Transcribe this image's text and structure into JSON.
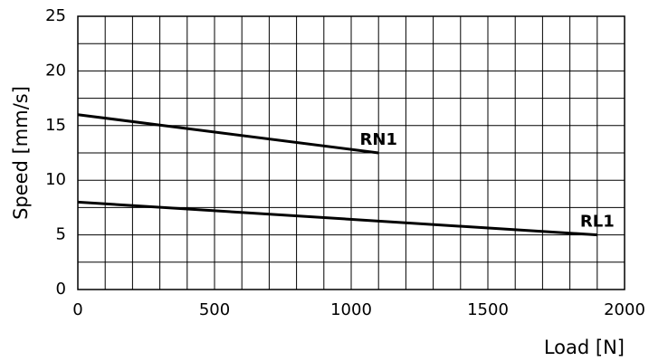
{
  "chart_data": {
    "type": "line",
    "title": "",
    "xlabel": "Load [N]",
    "ylabel": "Speed [mm/s]",
    "xlim": [
      0,
      2000
    ],
    "ylim": [
      0,
      25
    ],
    "x_ticks": [
      0,
      500,
      1000,
      1500,
      2000
    ],
    "y_ticks": [
      0,
      5,
      10,
      15,
      20,
      25
    ],
    "x_tick_labels": [
      "0",
      "500",
      "1000",
      "1500",
      "2000"
    ],
    "y_tick_labels": [
      "0",
      "5",
      "10",
      "15",
      "20",
      "25"
    ],
    "grid": true,
    "legend": "none",
    "series": [
      {
        "name": "RN1",
        "points": [
          [
            0,
            16
          ],
          [
            1100,
            12.5
          ]
        ]
      },
      {
        "name": "RL1",
        "points": [
          [
            0,
            8
          ],
          [
            1900,
            5
          ]
        ]
      }
    ]
  }
}
